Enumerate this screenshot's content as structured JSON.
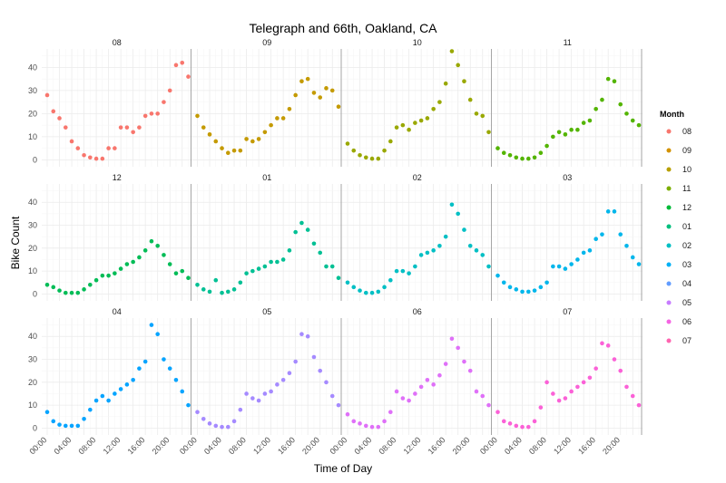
{
  "chart_data": {
    "type": "scatter",
    "title": "Telegraph and 66th, Oakland, CA",
    "xlabel": "Time of Day",
    "ylabel": "Bike Count",
    "ylim": [
      -3,
      48
    ],
    "yticks": [
      0,
      10,
      20,
      30,
      40
    ],
    "xlim": [
      0,
      23
    ],
    "xticks": [
      0,
      4,
      8,
      12,
      16,
      20
    ],
    "xtick_labels": [
      "00:00",
      "04:00",
      "08:00",
      "12:00",
      "16:00",
      "20:00"
    ],
    "vline_hour": 16,
    "grid": true,
    "legend_title": "Month",
    "legend_position": "right",
    "facets": [
      "08",
      "09",
      "10",
      "11",
      "12",
      "01",
      "02",
      "03",
      "04",
      "05",
      "06",
      "07"
    ],
    "colors": {
      "08": "#F8766D",
      "09": "#D39200",
      "10": "#93AA00",
      "11": "#00BA38",
      "12": "#00C19F",
      "01": "#00B9E3",
      "02": "#619CFF",
      "03": "#DB72FB",
      "04": "#FF61C3",
      "05": "#FF61C3",
      "06": "#FF61C3",
      "07": "#FF61C3"
    },
    "legend": [
      {
        "label": "08",
        "color": "#F8766D"
      },
      {
        "label": "09",
        "color": "#D39200"
      },
      {
        "label": "10",
        "color": "#B79F00"
      },
      {
        "label": "11",
        "color": "#7CAE00"
      },
      {
        "label": "12",
        "color": "#00BA38"
      },
      {
        "label": "01",
        "color": "#00BF7D"
      },
      {
        "label": "02",
        "color": "#00BFC4"
      },
      {
        "label": "03",
        "color": "#00B0F6"
      },
      {
        "label": "04",
        "color": "#619CFF"
      },
      {
        "label": "05",
        "color": "#C77CFF"
      },
      {
        "label": "06",
        "color": "#F564E3"
      },
      {
        "label": "07",
        "color": "#FF64B0"
      }
    ],
    "series_colors": [
      "#F8766D",
      "#C49A00",
      "#99A800",
      "#53B400",
      "#00BC56",
      "#00C094",
      "#00BFC4",
      "#00B6EB",
      "#06A4FF",
      "#A58AFF",
      "#DF70F8",
      "#FB61D7"
    ],
    "series": [
      {
        "name": "08",
        "x": [
          0,
          1,
          2,
          3,
          4,
          5,
          6,
          7,
          8,
          9,
          10,
          11,
          12,
          13,
          14,
          15,
          16,
          17,
          18,
          19,
          20,
          21,
          22,
          23
        ],
        "values": [
          28,
          21,
          18,
          14,
          8,
          5,
          2,
          1,
          0.5,
          0.5,
          5,
          5,
          14,
          14,
          12,
          14,
          19,
          20,
          20,
          25,
          30,
          41,
          42,
          36
        ]
      },
      {
        "name": "09",
        "x": [
          0,
          1,
          2,
          3,
          4,
          5,
          6,
          7,
          8,
          9,
          10,
          11,
          12,
          13,
          14,
          15,
          16,
          17,
          18,
          19,
          20,
          21,
          22,
          23
        ],
        "values": [
          19,
          14,
          11,
          8,
          5,
          3,
          4,
          4,
          9,
          8,
          9,
          12,
          15,
          18,
          18,
          22,
          28,
          34,
          35,
          29,
          27,
          31,
          30,
          23
        ]
      },
      {
        "name": "10",
        "x": [
          0,
          1,
          2,
          3,
          4,
          5,
          6,
          7,
          8,
          9,
          10,
          11,
          12,
          13,
          14,
          15,
          16,
          17,
          18,
          19,
          20,
          21,
          22,
          23
        ],
        "values": [
          7,
          4,
          2,
          1,
          0.5,
          0.5,
          4,
          8,
          14,
          15,
          13,
          16,
          17,
          18,
          22,
          25,
          33,
          47,
          41,
          34,
          26,
          20,
          19,
          12
        ]
      },
      {
        "name": "11",
        "x": [
          0,
          1,
          2,
          3,
          4,
          5,
          6,
          7,
          8,
          9,
          10,
          11,
          12,
          13,
          14,
          15,
          16,
          17,
          18,
          19,
          20,
          21,
          22,
          23
        ],
        "values": [
          5,
          3,
          2,
          1,
          0.5,
          0.5,
          1,
          3,
          6,
          10,
          12,
          11,
          13,
          13,
          16,
          17,
          22,
          26,
          35,
          34,
          24,
          20,
          17,
          15
        ]
      },
      {
        "name": "12",
        "x": [
          0,
          1,
          2,
          3,
          4,
          5,
          6,
          7,
          8,
          9,
          10,
          11,
          12,
          13,
          14,
          15,
          16,
          17,
          18,
          19,
          20,
          21,
          22,
          23
        ],
        "values": [
          4,
          3,
          1.5,
          0.5,
          0.5,
          0.5,
          2,
          4,
          6,
          8,
          8,
          9,
          11,
          13,
          14,
          16,
          19,
          23,
          21,
          17,
          13,
          9,
          10,
          7
        ]
      },
      {
        "name": "01",
        "x": [
          0,
          1,
          2,
          3,
          4,
          5,
          6,
          7,
          8,
          9,
          10,
          11,
          12,
          13,
          14,
          15,
          16,
          17,
          18,
          19,
          20,
          21,
          22,
          23
        ],
        "values": [
          4,
          2,
          1,
          6,
          0.5,
          1,
          2,
          5,
          9,
          10,
          11,
          12,
          14,
          14,
          15,
          19,
          27,
          31,
          28,
          22,
          18,
          12,
          12,
          7
        ]
      },
      {
        "name": "02",
        "x": [
          0,
          1,
          2,
          3,
          4,
          5,
          6,
          7,
          8,
          9,
          10,
          11,
          12,
          13,
          14,
          15,
          16,
          17,
          18,
          19,
          20,
          21,
          22,
          23
        ],
        "values": [
          5,
          3,
          1.5,
          0.5,
          0.5,
          1,
          3,
          6,
          10,
          10,
          9,
          12,
          17,
          18,
          19,
          21,
          25,
          39,
          35,
          28,
          21,
          19,
          17,
          12
        ]
      },
      {
        "name": "03",
        "x": [
          0,
          1,
          2,
          3,
          4,
          5,
          6,
          7,
          8,
          9,
          10,
          11,
          12,
          13,
          14,
          15,
          16,
          17,
          18,
          19,
          20,
          21,
          22,
          23
        ],
        "values": [
          8,
          5,
          3,
          2,
          1,
          1,
          1.5,
          3,
          5,
          12,
          12,
          11,
          13,
          15,
          18,
          19,
          24,
          26,
          36,
          36,
          26,
          21,
          16,
          13
        ]
      },
      {
        "name": "04",
        "x": [
          0,
          1,
          2,
          3,
          4,
          5,
          6,
          7,
          8,
          9,
          10,
          11,
          12,
          13,
          14,
          15,
          16,
          17,
          18,
          19,
          20,
          21,
          22,
          23
        ],
        "values": [
          7,
          3,
          1.5,
          1,
          1,
          1,
          4,
          8,
          12,
          14,
          12,
          15,
          17,
          19,
          21,
          26,
          29,
          45,
          41,
          30,
          26,
          21,
          16,
          10
        ]
      },
      {
        "name": "05",
        "x": [
          0,
          1,
          2,
          3,
          4,
          5,
          6,
          7,
          8,
          9,
          10,
          11,
          12,
          13,
          14,
          15,
          16,
          17,
          18,
          19,
          20,
          21,
          22,
          23
        ],
        "values": [
          7,
          4,
          2,
          1,
          0.5,
          0.5,
          3,
          8,
          15,
          13,
          12,
          15,
          16,
          19,
          21,
          24,
          29,
          41,
          40,
          31,
          25,
          20,
          14,
          10
        ]
      },
      {
        "name": "06",
        "x": [
          0,
          1,
          2,
          3,
          4,
          5,
          6,
          7,
          8,
          9,
          10,
          11,
          12,
          13,
          14,
          15,
          16,
          17,
          18,
          19,
          20,
          21,
          22,
          23
        ],
        "values": [
          6,
          3,
          2,
          1,
          0.5,
          0.5,
          3,
          7,
          16,
          13,
          12,
          15,
          18,
          21,
          19,
          23,
          28,
          39,
          35,
          29,
          25,
          16,
          14,
          10
        ]
      },
      {
        "name": "07",
        "x": [
          0,
          1,
          2,
          3,
          4,
          5,
          6,
          7,
          8,
          9,
          10,
          11,
          12,
          13,
          14,
          15,
          16,
          17,
          18,
          19,
          20,
          21,
          22,
          23
        ],
        "values": [
          7,
          3,
          2,
          1,
          0.5,
          0.5,
          3,
          9,
          20,
          15,
          12,
          13,
          16,
          18,
          20,
          22,
          26,
          37,
          36,
          30,
          25,
          18,
          14,
          10
        ]
      }
    ]
  }
}
